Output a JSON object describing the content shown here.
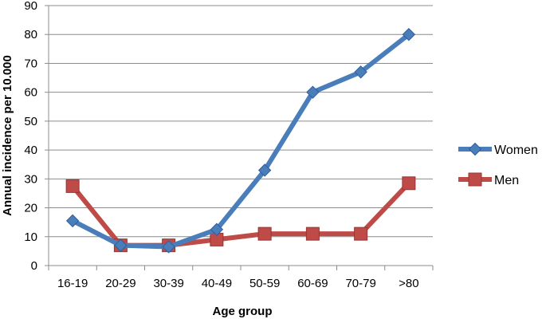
{
  "chart_data": {
    "type": "line",
    "xlabel": "Age group",
    "ylabel": "Annual incidence per 10.000",
    "categories": [
      "16-19",
      "20-29",
      "30-39",
      "40-49",
      "50-59",
      "60-69",
      "70-79",
      ">80"
    ],
    "ylim": [
      0,
      90
    ],
    "yticks": [
      0,
      10,
      20,
      30,
      40,
      50,
      60,
      70,
      80,
      90
    ],
    "grid": true,
    "legend_position": "right",
    "series": [
      {
        "name": "Women",
        "marker": "diamond",
        "color": "#4A7EBB",
        "values": [
          15.5,
          7,
          6.5,
          12.5,
          33,
          60,
          67,
          80
        ]
      },
      {
        "name": "Men",
        "marker": "square",
        "color": "#BE4B48",
        "values": [
          27.5,
          7,
          7,
          9,
          11,
          11,
          11,
          28.5
        ]
      }
    ]
  }
}
